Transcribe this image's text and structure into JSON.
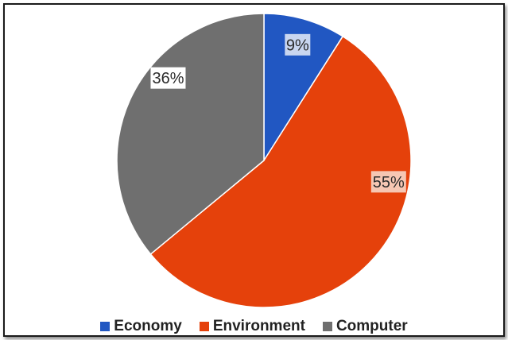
{
  "chart_data": {
    "type": "pie",
    "title": "",
    "categories": [
      "Economy",
      "Environment",
      "Computer"
    ],
    "values": [
      9,
      55,
      36
    ],
    "data_labels": [
      "9%",
      "55%",
      "36%"
    ],
    "colors": [
      "#2157c2",
      "#e5410b",
      "#6f6f6f"
    ],
    "legend_position": "bottom",
    "start_angle_deg": 0,
    "direction": "clockwise"
  }
}
